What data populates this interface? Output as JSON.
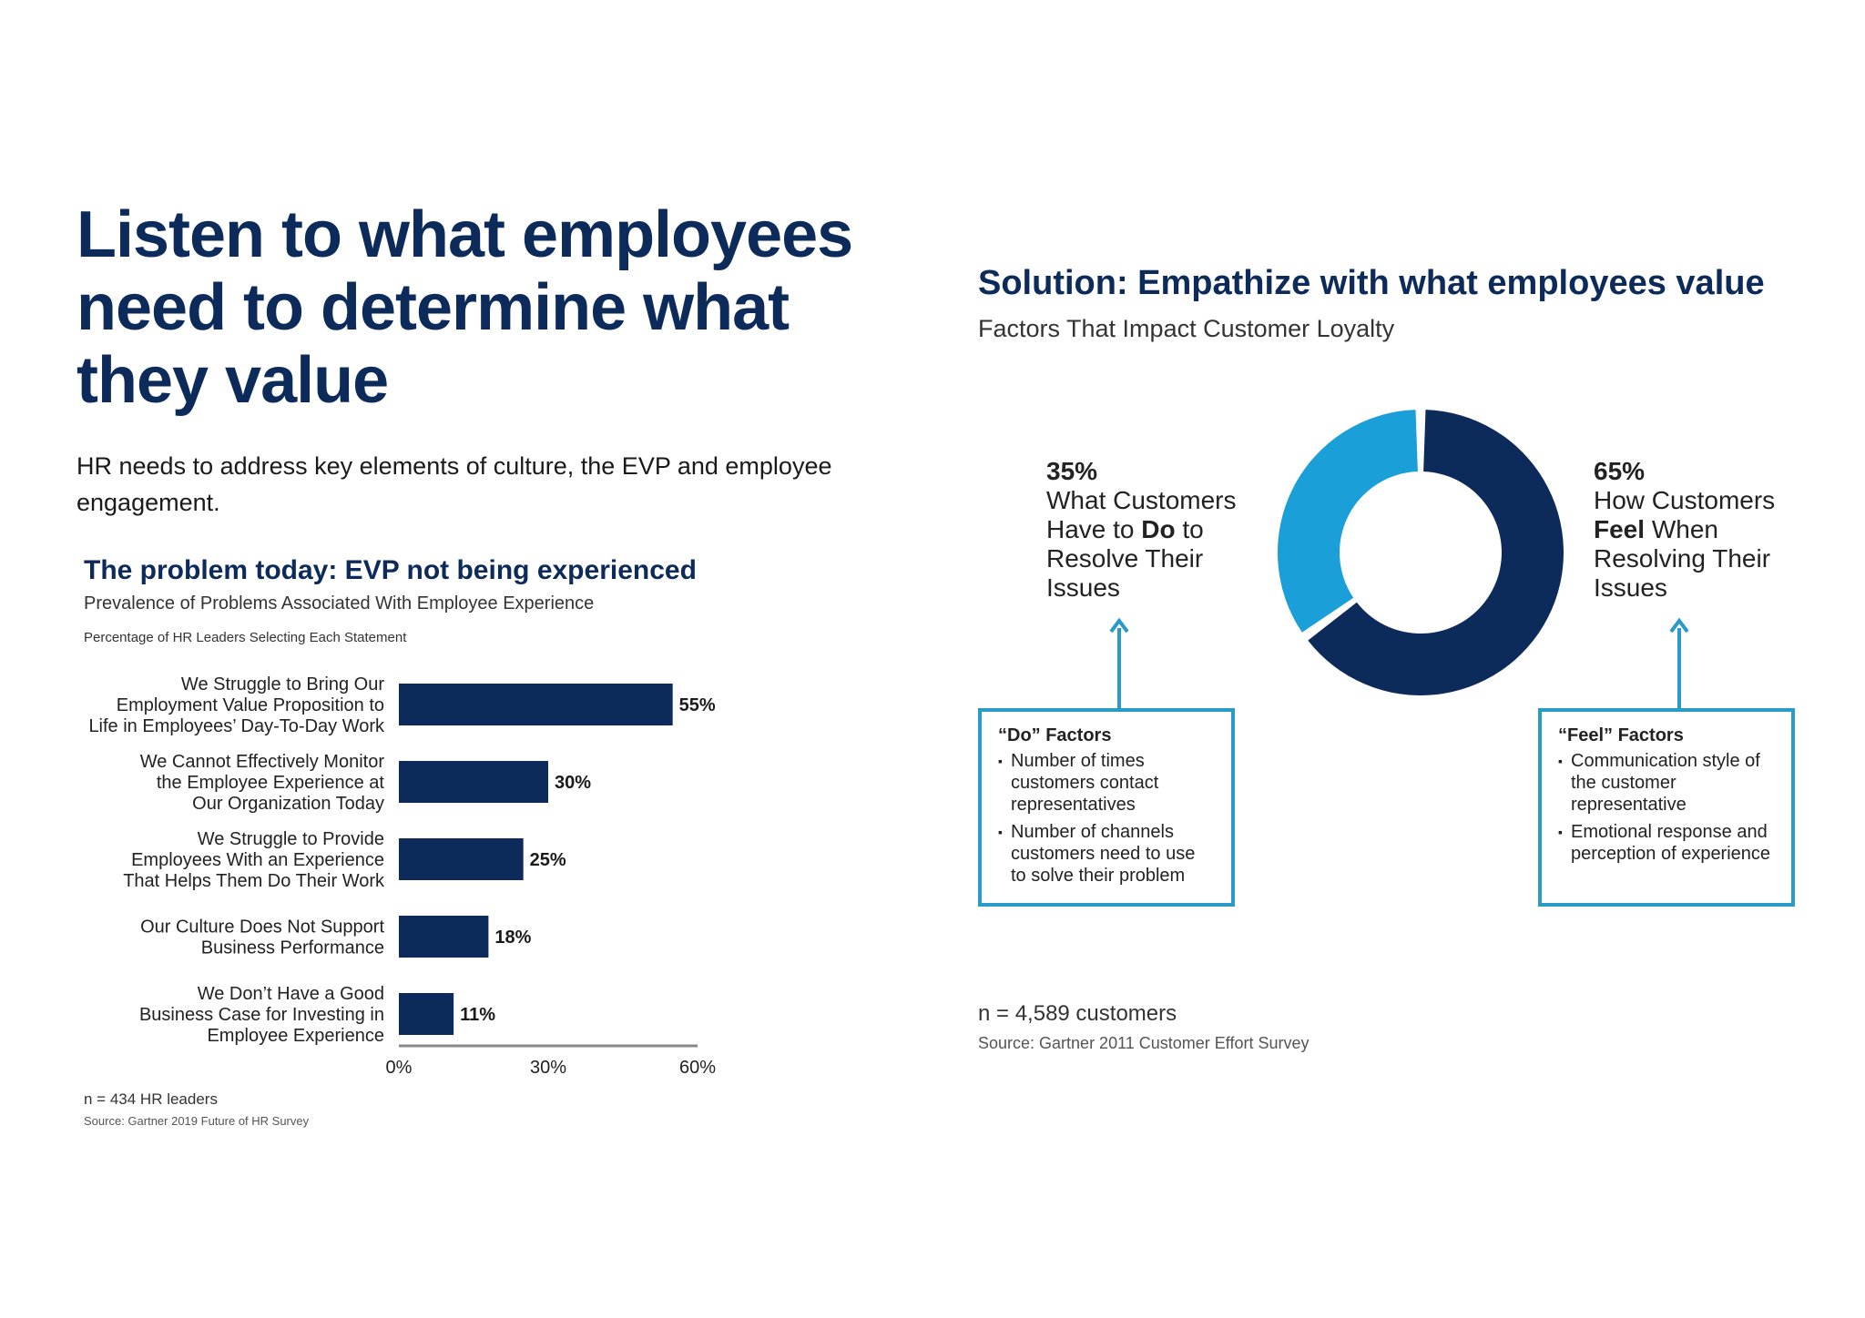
{
  "title": {
    "lines": [
      "Listen to what employees",
      "need to determine what",
      "they value"
    ]
  },
  "intro": "HR needs to address key elements of culture, the EVP and employee engagement.",
  "chart_data": [
    {
      "type": "bar",
      "orientation": "horizontal",
      "title": "The problem today: EVP not being experienced",
      "subtitle": "Prevalence of Problems Associated With Employee Experience",
      "note": "Percentage of HR Leaders Selecting Each Statement",
      "categories": [
        [
          "We Struggle to Bring Our",
          "Employment Value Proposition to",
          "Life in Employees’ Day-To-Day Work"
        ],
        [
          "We Cannot Effectively Monitor",
          "the Employee Experience at",
          "Our Organization Today"
        ],
        [
          "We Struggle to Provide",
          "Employees With an Experience",
          "That Helps Them Do Their Work"
        ],
        [
          "Our Culture Does Not Support",
          "Business Performance"
        ],
        [
          "We Don’t Have a Good",
          "Business Case for Investing in",
          "Employee Experience"
        ]
      ],
      "values": [
        55,
        30,
        25,
        18,
        11
      ],
      "value_labels": [
        "55%",
        "30%",
        "25%",
        "18%",
        "11%"
      ],
      "xlim": [
        0,
        60
      ],
      "xticks": [
        "0%",
        "30%",
        "60%"
      ],
      "xtick_values": [
        0,
        30,
        60
      ],
      "bar_color": "#0c2a5a",
      "sample": "n = 434 HR leaders",
      "source": "Source: Gartner 2019 Future of HR Survey"
    },
    {
      "type": "pie",
      "variant": "donut",
      "title": "Solution: Empathize with what employees value",
      "subtitle": "Factors That Impact Customer Loyalty",
      "slices": [
        {
          "value": 65,
          "label": "65%",
          "color": "#0c2a5a"
        },
        {
          "value": 35,
          "label": "35%",
          "color": "#1b9fd9"
        }
      ],
      "sample": "n = 4,589 customers",
      "source": "Source: Gartner 2011 Customer Effort Survey"
    }
  ],
  "donut_labels": {
    "do": {
      "pct": "35%",
      "lines": [
        "What Customers",
        "Have to Do to",
        "Resolve Their",
        "Issues"
      ]
    },
    "feel": {
      "pct": "65%",
      "lines": [
        "How Customers",
        "Feel When",
        "Resolving Their",
        "Issues"
      ]
    }
  },
  "factor_boxes": {
    "do": {
      "title": "“Do” Factors",
      "items": [
        "Number of times customers contact representatives",
        "Number of channels customers need to use to solve their problem"
      ]
    },
    "feel": {
      "title": "“Feel” Factors",
      "items": [
        "Communication style of the customer representative",
        "Emotional response and perception of experience"
      ]
    }
  },
  "colors": {
    "navy": "#0c2a5a",
    "accent_blue": "#1b9fd9",
    "box_border": "#2a9ac9"
  }
}
